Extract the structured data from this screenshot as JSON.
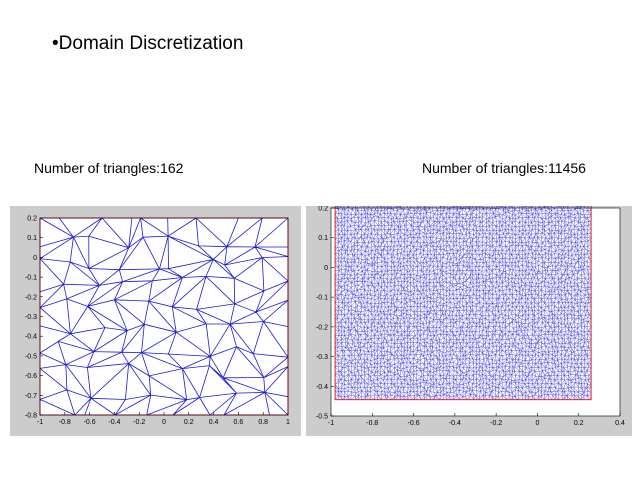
{
  "slide": {
    "title": "•Domain Discretization"
  },
  "left_mesh": {
    "caption": "Number of triangles:162",
    "x_ticks": [
      "-1",
      "-0.8",
      "-0.6",
      "-0.4",
      "-0.2",
      "0",
      "0.2",
      "0.4",
      "0.6",
      "0.8",
      "1"
    ],
    "y_ticks": [
      "0.2",
      "0.1",
      "0",
      "-0.1",
      "-0.2",
      "-0.3",
      "-0.4",
      "-0.5",
      "-0.6",
      "-0.7",
      "-0.8"
    ],
    "x_range": [
      -1,
      1
    ],
    "y_range": [
      -0.8,
      0.2
    ],
    "mesh_color": "#1a1ad6",
    "border_color": "#e0202a"
  },
  "right_mesh": {
    "caption": "Number of triangles:11456",
    "x_ticks": [
      "-1",
      "-0.8",
      "-0.6",
      "-0.4",
      "-0.2",
      "0",
      "0.2",
      "0.4"
    ],
    "y_ticks": [
      "0.2",
      "0.1",
      "0",
      "-0.1",
      "-0.2",
      "-0.3",
      "-0.4",
      "-0.5"
    ],
    "x_range": [
      -1,
      0.4
    ],
    "y_range": [
      -0.5,
      0.2
    ],
    "domain_x": [
      -0.98,
      0.26
    ],
    "domain_y": [
      -0.445,
      0.235
    ],
    "mesh_color": "#1a1ad6",
    "border_color": "#e0202a"
  }
}
